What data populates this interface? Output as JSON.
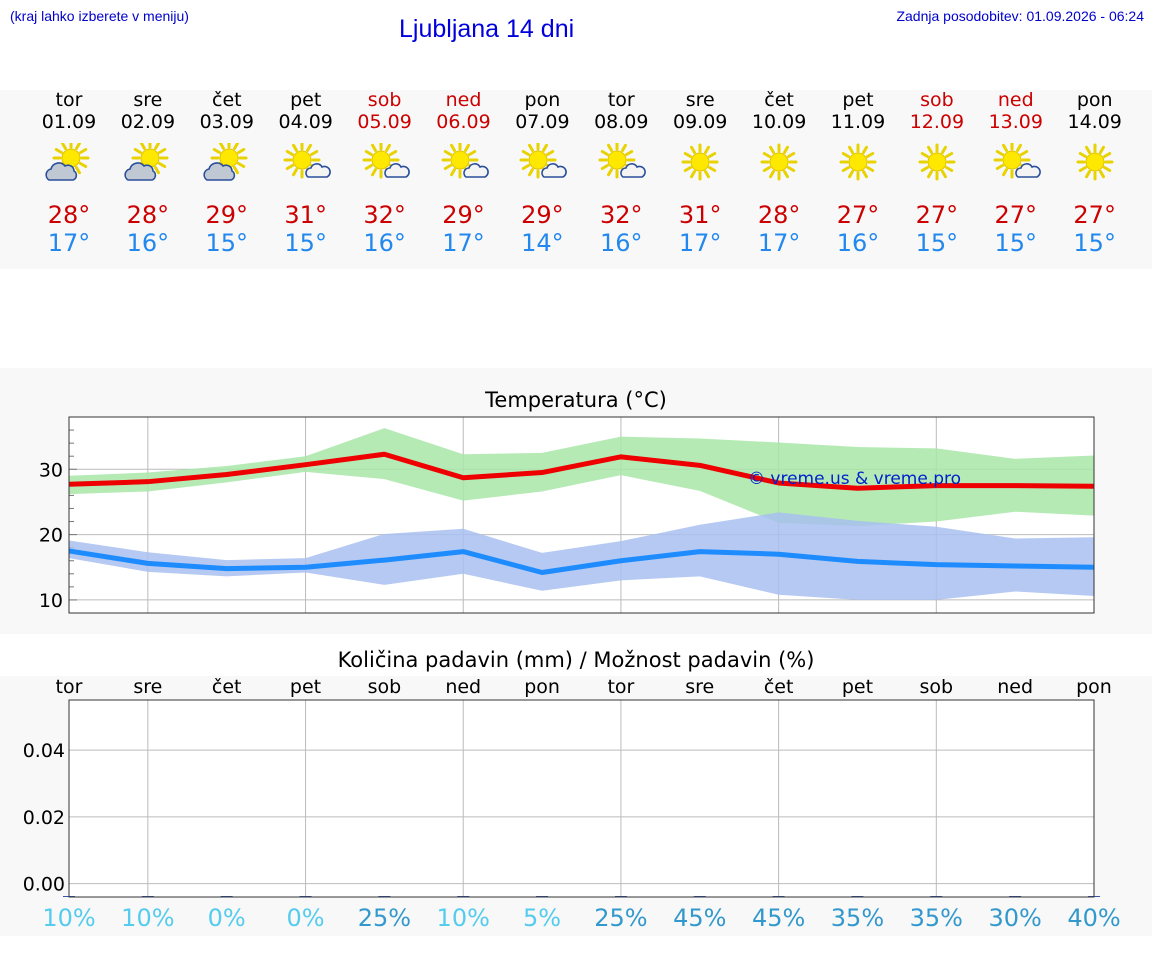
{
  "header": {
    "hint": "(kraj lahko izberete v meniju)",
    "title": "Ljubljana 14 dni",
    "updated": "Zadnja posodobitev: 01.09.2026 - 06:24"
  },
  "days": [
    {
      "name": "tor",
      "date": "01.09",
      "weekend": false,
      "icon": "sun-cloud-icon",
      "max": "28°",
      "min": "17°"
    },
    {
      "name": "sre",
      "date": "02.09",
      "weekend": false,
      "icon": "sun-cloud-icon",
      "max": "28°",
      "min": "16°"
    },
    {
      "name": "čet",
      "date": "03.09",
      "weekend": false,
      "icon": "sun-cloud-icon",
      "max": "29°",
      "min": "15°"
    },
    {
      "name": "pet",
      "date": "04.09",
      "weekend": false,
      "icon": "sun-small-cloud-icon",
      "max": "31°",
      "min": "15°"
    },
    {
      "name": "sob",
      "date": "05.09",
      "weekend": true,
      "icon": "sun-small-cloud-icon",
      "max": "32°",
      "min": "16°"
    },
    {
      "name": "ned",
      "date": "06.09",
      "weekend": true,
      "icon": "sun-small-cloud-icon",
      "max": "29°",
      "min": "17°"
    },
    {
      "name": "pon",
      "date": "07.09",
      "weekend": false,
      "icon": "sun-small-cloud-icon",
      "max": "29°",
      "min": "14°"
    },
    {
      "name": "tor",
      "date": "08.09",
      "weekend": false,
      "icon": "sun-small-cloud-icon",
      "max": "32°",
      "min": "16°"
    },
    {
      "name": "sre",
      "date": "09.09",
      "weekend": false,
      "icon": "sun-icon",
      "max": "31°",
      "min": "17°"
    },
    {
      "name": "čet",
      "date": "10.09",
      "weekend": false,
      "icon": "sun-icon",
      "max": "28°",
      "min": "17°"
    },
    {
      "name": "pet",
      "date": "11.09",
      "weekend": false,
      "icon": "sun-icon",
      "max": "27°",
      "min": "16°"
    },
    {
      "name": "sob",
      "date": "12.09",
      "weekend": true,
      "icon": "sun-icon",
      "max": "27°",
      "min": "15°"
    },
    {
      "name": "ned",
      "date": "13.09",
      "weekend": true,
      "icon": "sun-small-cloud-icon",
      "max": "27°",
      "min": "15°"
    },
    {
      "name": "pon",
      "date": "14.09",
      "weekend": false,
      "icon": "sun-icon",
      "max": "27°",
      "min": "15°"
    }
  ],
  "colors": {
    "max_line": "#ee0000",
    "max_band": "#a8e6a8",
    "min_line": "#1e8cff",
    "min_band": "#a8c0f0",
    "weekend": "#cc0000",
    "pct_low": "#55ccee",
    "pct_high": "#3399cc"
  },
  "chart_data": [
    {
      "type": "line",
      "title": "Temperatura (°C)",
      "x": [
        "01.09",
        "02.09",
        "03.09",
        "04.09",
        "05.09",
        "06.09",
        "07.09",
        "08.09",
        "09.09",
        "10.09",
        "11.09",
        "12.09",
        "13.09",
        "14.09"
      ],
      "ylim": [
        8,
        38
      ],
      "yticks": [
        10,
        20,
        30
      ],
      "grid": true,
      "watermark": "© vreme.us & vreme.pro",
      "series": [
        {
          "values": [
            27.7,
            28.1,
            29.2,
            30.7,
            32.3,
            28.7,
            29.5,
            31.9,
            30.6,
            27.9,
            27.1,
            27.5,
            27.5,
            27.4
          ]
        },
        {
          "values": [
            17.5,
            15.6,
            14.8,
            15.0,
            16.1,
            17.4,
            14.2,
            16.0,
            17.4,
            17.0,
            15.9,
            15.4,
            15.2,
            15.0
          ]
        }
      ],
      "bands": [
        {
          "low": [
            26.2,
            26.6,
            28.0,
            29.6,
            28.5,
            25.2,
            26.6,
            29.1,
            26.7,
            21.8,
            21.3,
            22.0,
            23.5,
            22.9
          ],
          "high": [
            29.0,
            29.5,
            30.5,
            32.0,
            36.3,
            32.3,
            32.5,
            35.0,
            34.7,
            34.1,
            33.4,
            33.2,
            31.6,
            32.1
          ]
        },
        {
          "low": [
            16.4,
            14.3,
            13.6,
            14.2,
            12.3,
            14.0,
            11.4,
            13.0,
            13.6,
            10.8,
            10.0,
            10.0,
            11.3,
            10.6
          ],
          "high": [
            19.1,
            17.3,
            16.1,
            16.4,
            20.1,
            20.9,
            17.2,
            19.0,
            21.5,
            23.4,
            22.1,
            21.2,
            19.4,
            19.6
          ]
        }
      ]
    },
    {
      "type": "bar",
      "title": "Količina padavin (mm) / Možnost padavin (%)",
      "categories": [
        "tor",
        "sre",
        "čet",
        "pet",
        "sob",
        "ned",
        "pon",
        "tor",
        "sre",
        "čet",
        "pet",
        "sob",
        "ned",
        "pon"
      ],
      "values": [
        0,
        0,
        0,
        0,
        0,
        0,
        0,
        0,
        0,
        0,
        0,
        0,
        0,
        0
      ],
      "ylim": [
        -0.004,
        0.055
      ],
      "yticks": [
        "0.00",
        "0.02",
        "0.04"
      ],
      "probability": [
        "10%",
        "10%",
        "0%",
        "0%",
        "25%",
        "10%",
        "5%",
        "25%",
        "45%",
        "45%",
        "35%",
        "35%",
        "30%",
        "40%"
      ],
      "grid": true
    }
  ]
}
